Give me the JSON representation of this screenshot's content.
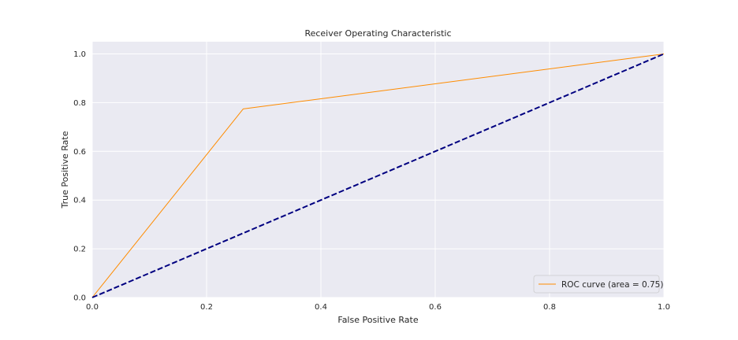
{
  "chart_data": {
    "type": "line",
    "title": "Receiver Operating Characteristic",
    "xlabel": "False Positive Rate",
    "ylabel": "True Positive Rate",
    "xlim": [
      0.0,
      1.0
    ],
    "ylim": [
      0.0,
      1.05
    ],
    "x_ticks": [
      "0.0",
      "0.2",
      "0.4",
      "0.6",
      "0.8",
      "1.0"
    ],
    "y_ticks": [
      "0.0",
      "0.2",
      "0.4",
      "0.6",
      "0.8",
      "1.0"
    ],
    "grid": true,
    "legend_position": "lower-right",
    "series": [
      {
        "name": "ROC curve (area = 0.75)",
        "color": "#ff8c00",
        "style": "solid",
        "x": [
          0.0,
          0.264,
          1.0
        ],
        "y": [
          0.0,
          0.774,
          1.0
        ]
      },
      {
        "color": "#000080",
        "style": "dashed",
        "x": [
          0.0,
          1.0
        ],
        "y": [
          0.0,
          1.0
        ]
      }
    ],
    "colors": {
      "plot_background": "#eaeaf2",
      "grid": "#ffffff"
    }
  }
}
